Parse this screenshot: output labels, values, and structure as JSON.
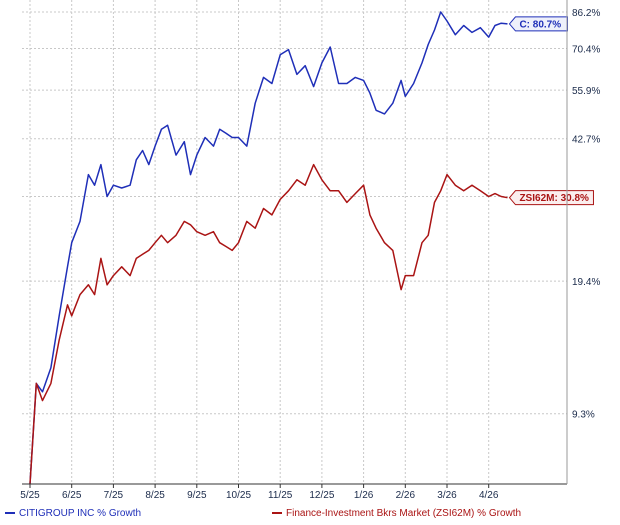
{
  "chart_data": {
    "type": "line",
    "title": "",
    "xlabel": "",
    "ylabel": "",
    "y_scale": "log",
    "ylim": [
      6.3,
      86.2
    ],
    "y_ticks": [
      "9.3%",
      "19.4%",
      "31.0%",
      "42.7%",
      "55.9%",
      "70.4%",
      "86.2%"
    ],
    "y_tick_values": [
      9.3,
      19.4,
      31.0,
      42.7,
      55.9,
      70.4,
      86.2
    ],
    "y_tick_labels_visible": [
      "9.3%",
      "19.4%",
      "42.7%",
      "55.9%",
      "70.4%",
      "86.2%"
    ],
    "x_ticks": [
      "5/25",
      "6/25",
      "7/25",
      "8/25",
      "9/25",
      "10/25",
      "11/25",
      "12/25",
      "1/26",
      "2/26",
      "3/26",
      "4/26"
    ],
    "grid": true,
    "legend_position": "bottom",
    "series": [
      {
        "name": "CITIGROUP INC % Growth",
        "color": "#1f2fb8",
        "end_label": "C: 80.7%",
        "x": [
          0,
          0.15,
          0.3,
          0.5,
          0.7,
          0.9,
          1.0,
          1.2,
          1.4,
          1.55,
          1.7,
          1.85,
          2.0,
          2.2,
          2.4,
          2.55,
          2.7,
          2.85,
          3.0,
          3.15,
          3.3,
          3.5,
          3.7,
          3.85,
          4.0,
          4.2,
          4.4,
          4.55,
          4.7,
          4.85,
          5.0,
          5.2,
          5.4,
          5.6,
          5.8,
          6.0,
          6.2,
          6.4,
          6.6,
          6.8,
          7.0,
          7.2,
          7.4,
          7.6,
          7.8,
          8.0,
          8.15,
          8.3,
          8.5,
          8.7,
          8.9,
          9.0,
          9.2,
          9.4,
          9.55,
          9.7,
          9.85,
          10.0,
          10.2,
          10.4,
          10.6,
          10.8,
          11.0,
          11.15,
          11.3,
          11.45
        ],
        "values": [
          6.3,
          11,
          10.5,
          12,
          16,
          21,
          24,
          27,
          35,
          33,
          37,
          31,
          33,
          32.5,
          33,
          38,
          40,
          37,
          41,
          45,
          46,
          39,
          42,
          35,
          39,
          43,
          41,
          45,
          44,
          43,
          43,
          41,
          52,
          60,
          58,
          68,
          70,
          61,
          64,
          57,
          65,
          71,
          58,
          58,
          60,
          59,
          55,
          50,
          49,
          52,
          59,
          54,
          58,
          65,
          72,
          78,
          86.2,
          82,
          76,
          80,
          77,
          79,
          75,
          80,
          81,
          80.7
        ]
      },
      {
        "name": "Finance-Investment Bkrs Market (ZSI62M) % Growth",
        "color": "#aa1414",
        "end_label": "ZSI62M: 30.8%",
        "x": [
          0,
          0.15,
          0.3,
          0.5,
          0.7,
          0.9,
          1.0,
          1.2,
          1.4,
          1.55,
          1.7,
          1.85,
          2.0,
          2.2,
          2.4,
          2.55,
          2.7,
          2.85,
          3.0,
          3.15,
          3.3,
          3.5,
          3.7,
          3.85,
          4.0,
          4.2,
          4.4,
          4.55,
          4.7,
          4.85,
          5.0,
          5.2,
          5.4,
          5.6,
          5.8,
          6.0,
          6.2,
          6.4,
          6.6,
          6.8,
          7.0,
          7.2,
          7.4,
          7.6,
          7.8,
          8.0,
          8.15,
          8.3,
          8.5,
          8.7,
          8.9,
          9.0,
          9.2,
          9.4,
          9.55,
          9.7,
          9.85,
          10.0,
          10.2,
          10.4,
          10.6,
          10.8,
          11.0,
          11.15,
          11.3,
          11.45
        ],
        "values": [
          6.3,
          11,
          10,
          11,
          14,
          17,
          16,
          18,
          19,
          18,
          22,
          19,
          20,
          21,
          20,
          22,
          22.5,
          23,
          24,
          25,
          24,
          25,
          27,
          26.5,
          25.5,
          25,
          25.5,
          24,
          23.5,
          23,
          24,
          27,
          26,
          29,
          28,
          30.5,
          32,
          34,
          33,
          37,
          34,
          32,
          32,
          30,
          31.5,
          33,
          28,
          26,
          24,
          23,
          18.5,
          20,
          20,
          24,
          25,
          30,
          32,
          35,
          33,
          32,
          33,
          32,
          31,
          31.5,
          31,
          30.8
        ]
      }
    ]
  }
}
